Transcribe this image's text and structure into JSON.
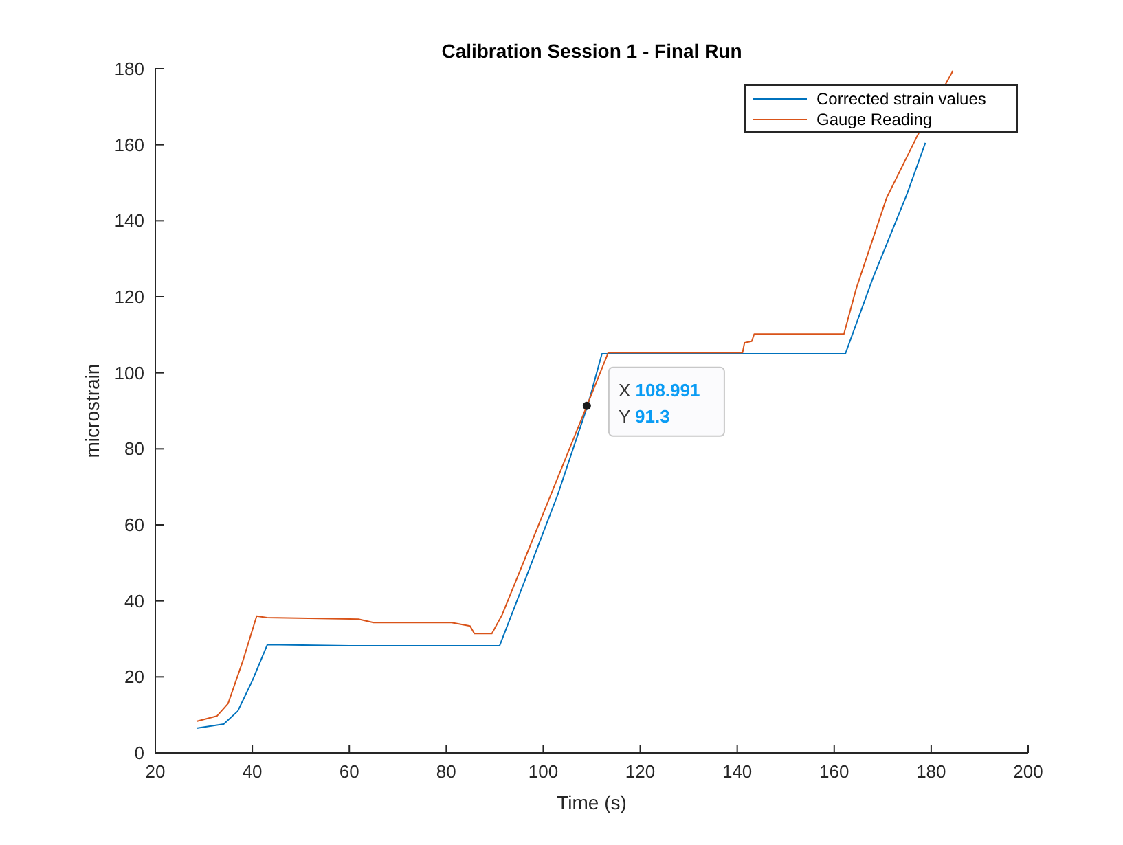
{
  "chart_data": {
    "type": "line",
    "title": "Calibration Session 1 - Final Run",
    "xlabel": "Time (s)",
    "ylabel": "microstrain",
    "xlim": [
      20,
      200
    ],
    "xticks": [
      20,
      40,
      60,
      80,
      100,
      120,
      140,
      160,
      180,
      200
    ],
    "ylim": [
      0,
      180
    ],
    "yticks": [
      0,
      20,
      40,
      60,
      80,
      100,
      120,
      140,
      160,
      180
    ],
    "grid": false,
    "legend": "top right",
    "marker": "none",
    "line_style": "solid",
    "series": [
      {
        "name": "Corrected strain values",
        "color": "#0072bd",
        "x": [
          28.5,
          34.1,
          37,
          40,
          43.1,
          60,
          91,
          97,
          103,
          109.3,
          112.1,
          130,
          162.3,
          168,
          175,
          178.8
        ],
        "values": [
          6.5,
          7.6,
          11,
          19,
          28.5,
          28.2,
          28.2,
          48,
          68,
          92,
          105,
          105,
          105,
          125,
          147,
          160.5
        ]
      },
      {
        "name": "Gauge Reading",
        "color": "#d95319",
        "x": [
          28.5,
          32.7,
          35,
          38,
          40.9,
          43,
          61.9,
          65,
          81.1,
          84.9,
          85.8,
          89.4,
          91.5,
          100,
          108.991,
          113.4,
          141.1,
          141.5,
          143,
          143.5,
          162,
          164.5,
          170.8,
          177,
          184.5
        ],
        "values": [
          8.3,
          9.7,
          13,
          24,
          36,
          35.6,
          35.2,
          34.3,
          34.3,
          33.4,
          31.4,
          31.4,
          36.3,
          63,
          91.3,
          105.3,
          105.3,
          107.9,
          108.3,
          110.2,
          110.2,
          122,
          146,
          162,
          179.5
        ]
      }
    ],
    "annotations": [
      {
        "text": "X 108.991\nY 91.3",
        "x": 108.991,
        "y": 91.3
      }
    ]
  }
}
